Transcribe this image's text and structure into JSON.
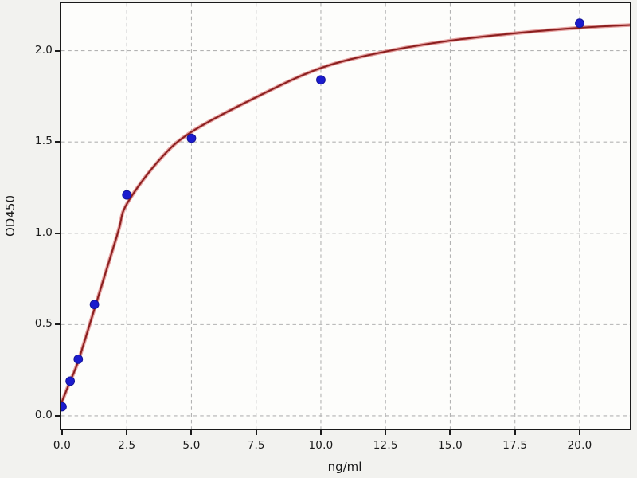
{
  "chart_data": {
    "type": "scatter",
    "title": "",
    "xlabel": "ng/ml",
    "ylabel": "OD450",
    "xlim": [
      -0.03,
      21.94
    ],
    "ylim": [
      -0.07,
      2.26
    ],
    "xticks": [
      0,
      2.5,
      5,
      7.5,
      10,
      12.5,
      15,
      17.5,
      20
    ],
    "xtick_labels": [
      "0.0",
      "2.5",
      "5.0",
      "7.5",
      "10.0",
      "12.5",
      "15.0",
      "17.5",
      "20.0"
    ],
    "yticks": [
      0,
      0.5,
      1,
      1.5,
      2
    ],
    "ytick_labels": [
      "0.0",
      "0.5",
      "1.0",
      "1.5",
      "2.0"
    ],
    "grid": {
      "visible": true,
      "style": "dashed",
      "color": "#b3b3b3"
    },
    "legend": null,
    "series": [
      {
        "name": "standard-points",
        "kind": "scatter",
        "marker": "circle",
        "marker_radius": 5.4,
        "color": "#1b1bce",
        "edge_color": "#151599",
        "points": [
          [
            0,
            0.05
          ],
          [
            0.3125,
            0.19
          ],
          [
            0.625,
            0.31
          ],
          [
            1.25,
            0.61
          ],
          [
            2.5,
            1.21
          ],
          [
            5,
            1.52
          ],
          [
            10,
            1.84
          ],
          [
            20,
            2.15
          ]
        ]
      },
      {
        "name": "fitted-curve",
        "kind": "line",
        "color": "#8b1f1f",
        "glow_color": "#e08b8b",
        "points": [
          [
            0,
            0.08
          ],
          [
            0.3125,
            0.19
          ],
          [
            0.625,
            0.3
          ],
          [
            1.25,
            0.585
          ],
          [
            2.15,
            1.0
          ],
          [
            2.5,
            1.16
          ],
          [
            3.75,
            1.4
          ],
          [
            5,
            1.555
          ],
          [
            7.5,
            1.745
          ],
          [
            10,
            1.905
          ],
          [
            12.5,
            1.995
          ],
          [
            15,
            2.055
          ],
          [
            17.5,
            2.095
          ],
          [
            20,
            2.125
          ],
          [
            21.94,
            2.14
          ]
        ]
      }
    ],
    "colors": {
      "figure_bg": "#f2f2ef",
      "axes_bg": "#fdfdfb",
      "spine": "#1a1a1a",
      "tick_label": "#1a1a1a"
    }
  }
}
